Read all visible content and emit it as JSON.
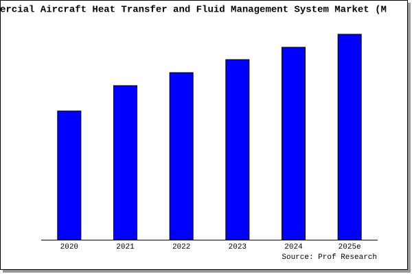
{
  "chart_data": {
    "type": "bar",
    "title": "ercial Aircraft Heat Transfer and Fluid Management System Market (M",
    "categories": [
      "2020",
      "2021",
      "2022",
      "2023",
      "2024",
      "2025e"
    ],
    "values": [
      188,
      225,
      244,
      263,
      281,
      300
    ],
    "color": "#0000ff",
    "ylim": [
      0,
      320
    ],
    "source": "Source: Prof Research"
  }
}
